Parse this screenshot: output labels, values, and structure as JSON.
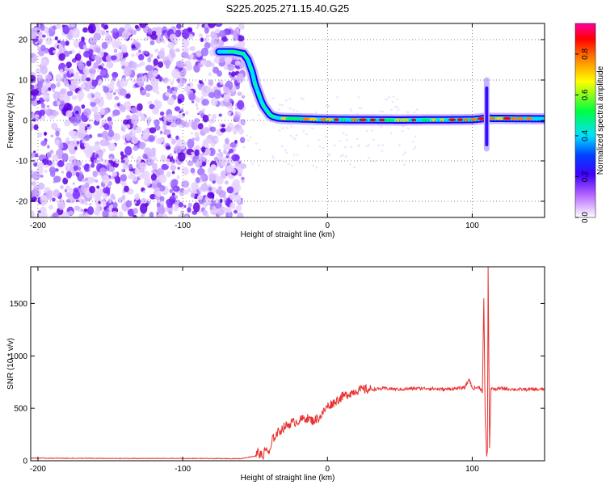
{
  "title": "S225.2025.271.15.40.G25",
  "chart_data": [
    {
      "type": "heatmap",
      "xlabel": "Height of straight line (km)",
      "ylabel": "Frequency (Hz)",
      "xlim": [
        -205,
        150
      ],
      "ylim": [
        -24,
        24
      ],
      "xticks": [
        -200,
        -100,
        0,
        100
      ],
      "xtick_labels": [
        "-200",
        "-100",
        "0",
        "100"
      ],
      "yticks": [
        -20,
        -10,
        0,
        10,
        20
      ],
      "ytick_labels": [
        "-20",
        "-10",
        "0",
        "10",
        "20"
      ],
      "colorbar": {
        "label": "Normalized spectral amplitude",
        "range": [
          0,
          0.95
        ],
        "ticks": [
          0,
          0.2,
          0.4,
          0.6,
          0.8
        ],
        "tick_labels": [
          "0.0",
          "0.2",
          "0.4",
          "0.6",
          "0.8"
        ],
        "colors": [
          "#ffffff",
          "#a000ff",
          "#0000ff",
          "#00ffff",
          "#00ff00",
          "#ffff00",
          "#ff8000",
          "#ff0000",
          "#ff00a0"
        ]
      },
      "noise_region_x": [
        -205,
        -58
      ],
      "signal_track": {
        "x": [
          -75,
          -65,
          -58,
          -55,
          -52,
          -50,
          -48,
          -46,
          -44,
          -42,
          -40,
          -38,
          -36,
          -34,
          -30,
          -20,
          0,
          50,
          100,
          106,
          110,
          114,
          120,
          150
        ],
        "y": [
          17,
          17,
          16.5,
          15,
          12,
          9,
          7,
          5,
          3.5,
          2.5,
          1.5,
          1,
          0.8,
          0.6,
          0.5,
          0.4,
          0.2,
          0.1,
          0.2,
          0.4,
          0.6,
          0.5,
          0.5,
          0.4
        ]
      },
      "spike": {
        "x": 110,
        "y_range": [
          -7,
          10
        ]
      },
      "grid": true
    },
    {
      "type": "line",
      "xlabel": "Height of straight line (km)",
      "ylabel": "SNR (10 * v/v)",
      "xlim": [
        -205,
        150
      ],
      "ylim": [
        0,
        1850
      ],
      "xticks": [
        -200,
        -100,
        0,
        100
      ],
      "xtick_labels": [
        "-200",
        "-100",
        "0",
        "100"
      ],
      "yticks": [
        0,
        500,
        1000,
        1500
      ],
      "ytick_labels": [
        "0",
        "500",
        "1000",
        "1500"
      ],
      "color": "#e83030",
      "series": [
        {
          "x": [
            -205,
            -150,
            -100,
            -60,
            -50,
            -48,
            -45,
            -42,
            -40,
            -38,
            -35,
            -30,
            -25,
            -20,
            -15,
            -10,
            -5,
            0,
            5,
            10,
            15,
            20,
            25,
            30,
            40,
            50,
            60,
            70,
            80,
            90,
            95,
            98,
            100,
            105,
            107,
            108,
            109,
            110,
            110.5,
            111,
            112,
            113,
            115,
            120,
            130,
            140,
            150
          ],
          "y": [
            25,
            22,
            22,
            20,
            45,
            80,
            40,
            120,
            60,
            200,
            260,
            320,
            360,
            380,
            410,
            380,
            420,
            520,
            560,
            610,
            640,
            670,
            680,
            680,
            690,
            680,
            690,
            690,
            680,
            690,
            700,
            780,
            690,
            700,
            660,
            1550,
            400,
            50,
            90,
            1850,
            130,
            700,
            680,
            690,
            680,
            680,
            680
          ]
        }
      ],
      "grid": false
    }
  ]
}
